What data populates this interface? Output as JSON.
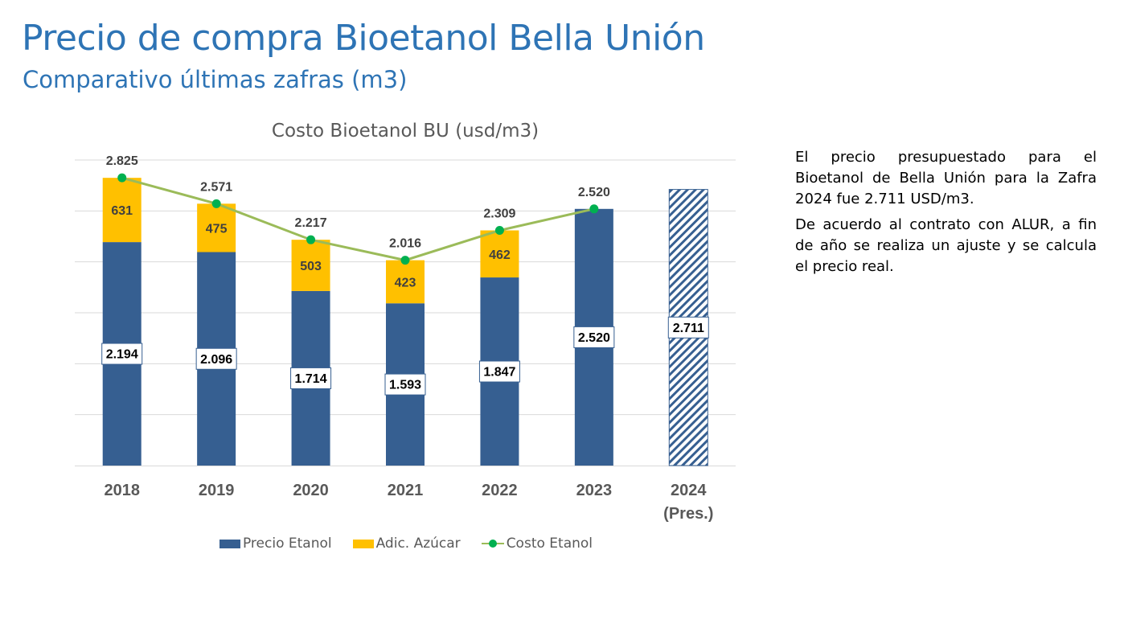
{
  "slide": {
    "title": "Precio de compra Bioetanol Bella Unión",
    "subtitle": "Comparativo últimas zafras (m3)",
    "notes": [
      "El precio presupuestado para el Bioetanol de Bella Unión para la Zafra 2024 fue 2.711 USD/m3.",
      "De acuerdo al contrato con ALUR, a fin de año se realiza un ajuste y se calcula el precio real."
    ]
  },
  "chart_data": {
    "type": "bar",
    "stacked": true,
    "title": "Costo Bioetanol BU (usd/m3)",
    "categories": [
      [
        "2018"
      ],
      [
        "2019"
      ],
      [
        "2020"
      ],
      [
        "2021"
      ],
      [
        "2022"
      ],
      [
        "2023"
      ],
      [
        "2024",
        "(Pres.)"
      ]
    ],
    "series": [
      {
        "name": "Precio Etanol",
        "kind": "bar",
        "color": "#365F91",
        "values": [
          2194,
          2096,
          1714,
          1593,
          1847,
          2520,
          2711
        ],
        "labels": [
          "2.194",
          "2.096",
          "1.714",
          "1.593",
          "1.847",
          "2.520",
          "2.711"
        ],
        "hatched_index": 6
      },
      {
        "name": "Adic. Azúcar",
        "kind": "bar",
        "color": "#FFC000",
        "values": [
          631,
          475,
          503,
          423,
          462,
          null,
          null
        ],
        "labels": [
          "631",
          "475",
          "503",
          "423",
          "462",
          "",
          ""
        ]
      },
      {
        "name": "Costo Etanol",
        "kind": "line",
        "color": "#9BBB59",
        "marker_color": "#00B050",
        "values": [
          2825,
          2571,
          2217,
          2016,
          2309,
          2520,
          null
        ],
        "labels": [
          "2.825",
          "2.571",
          "2.217",
          "2.016",
          "2.309",
          "2.520",
          ""
        ]
      }
    ],
    "ylim": [
      0,
      3000
    ],
    "gridlines": true,
    "y_axis_labels_shown": false,
    "legend_position": "bottom"
  }
}
